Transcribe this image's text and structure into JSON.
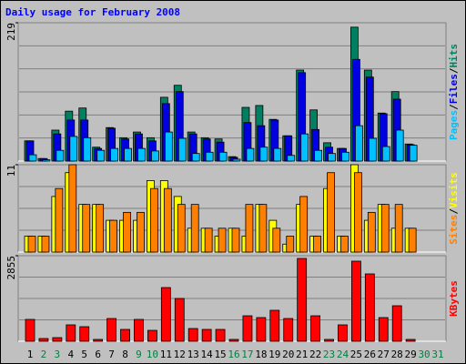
{
  "title": "Daily usage for February 2008",
  "legend_separator": "/",
  "chart_data": [
    {
      "type": "bar",
      "ylim": [
        0,
        219
      ],
      "yticks": [
        219
      ],
      "series": [
        {
          "name": "Hits",
          "color": "#008060",
          "values": [
            32,
            4,
            49,
            79,
            84,
            22,
            53,
            37,
            46,
            37,
            101,
            120,
            46,
            37,
            35,
            7,
            85,
            88,
            66,
            40,
            144,
            81,
            29,
            20,
            212,
            144,
            76,
            110,
            27,
            null,
            null
          ]
        },
        {
          "name": "Files",
          "color": "#0000e0",
          "values": [
            32,
            4,
            43,
            65,
            65,
            20,
            52,
            35,
            43,
            32,
            91,
            110,
            43,
            35,
            30,
            6,
            61,
            56,
            65,
            40,
            140,
            50,
            22,
            20,
            161,
            133,
            75,
            98,
            26,
            null,
            null
          ]
        },
        {
          "name": "Pages",
          "color": "#00c0ff",
          "values": [
            10,
            2,
            17,
            39,
            37,
            17,
            20,
            20,
            20,
            16,
            46,
            36,
            12,
            14,
            14,
            3,
            20,
            22,
            20,
            9,
            43,
            17,
            12,
            14,
            56,
            36,
            23,
            49,
            25,
            null,
            null
          ]
        }
      ]
    },
    {
      "type": "bar",
      "ylim": [
        0,
        11
      ],
      "yticks": [
        11
      ],
      "series": [
        {
          "name": "Visits",
          "color": "#ffff00",
          "values": [
            2,
            2,
            7,
            10,
            6,
            6,
            4,
            4,
            4,
            9,
            9,
            7,
            3,
            3,
            2,
            3,
            2,
            6,
            4,
            1,
            6,
            2,
            8,
            2,
            11,
            4,
            6,
            3,
            3,
            null,
            null
          ]
        },
        {
          "name": "Sites",
          "color": "#ff8000",
          "values": [
            2,
            2,
            8,
            11,
            6,
            6,
            4,
            5,
            5,
            8,
            8,
            6,
            6,
            3,
            3,
            3,
            6,
            6,
            3,
            2,
            7,
            2,
            10,
            2,
            10,
            5,
            6,
            6,
            3,
            null,
            null
          ]
        }
      ]
    },
    {
      "type": "bar",
      "ylim": [
        0,
        2855
      ],
      "yticks": [
        2855
      ],
      "categories": [
        "1",
        "2",
        "3",
        "4",
        "5",
        "6",
        "7",
        "8",
        "9",
        "10",
        "11",
        "12",
        "13",
        "14",
        "15",
        "16",
        "17",
        "18",
        "19",
        "20",
        "21",
        "22",
        "23",
        "24",
        "25",
        "26",
        "27",
        "28",
        "29",
        "30",
        "31"
      ],
      "category_colors": [
        "#000000",
        "#008040",
        "#008040",
        "#000000",
        "#000000",
        "#000000",
        "#000000",
        "#000000",
        "#008040",
        "#008040",
        "#000000",
        "#000000",
        "#000000",
        "#000000",
        "#000000",
        "#008040",
        "#008040",
        "#000000",
        "#000000",
        "#000000",
        "#000000",
        "#000000",
        "#008040",
        "#008040",
        "#000000",
        "#000000",
        "#000000",
        "#000000",
        "#000000",
        "#008040",
        "#008040"
      ],
      "series": [
        {
          "name": "KBytes",
          "color": "#ff0000",
          "values": [
            729,
            91,
            121,
            547,
            486,
            61,
            759,
            395,
            729,
            364,
            1792,
            1428,
            425,
            395,
            395,
            61,
            850,
            790,
            1033,
            759,
            2764,
            850,
            61,
            547,
            2673,
            2248,
            790,
            1185,
            61,
            null,
            null
          ]
        }
      ]
    }
  ]
}
